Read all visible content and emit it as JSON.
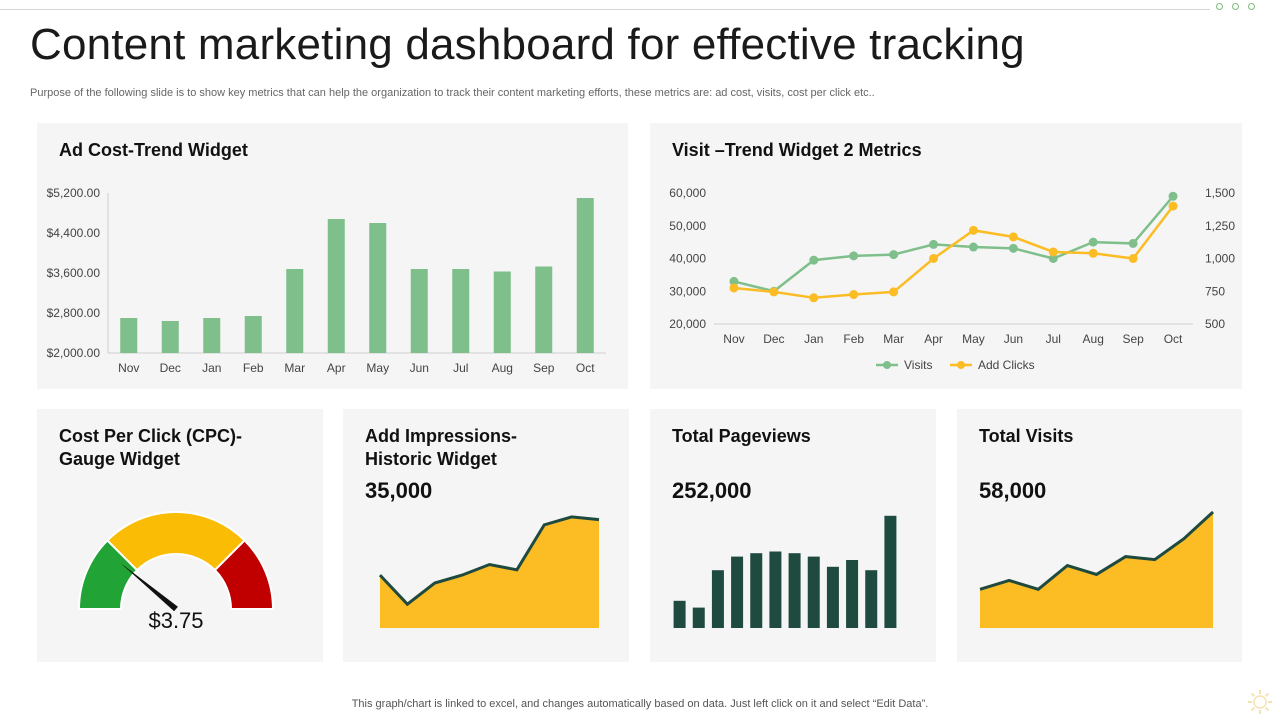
{
  "page": {
    "title": "Content marketing dashboard for effective tracking",
    "subtitle": "Purpose of the following slide is to show key metrics that can help the organization to track their content marketing efforts, these metrics are: ad cost, visits, cost per click etc..",
    "footer": "This graph/chart is linked to excel,  and changes automatically based on data. Just left click on it and select “Edit Data”."
  },
  "colors": {
    "green": "#7fbf8b",
    "yellow": "#fbbc24",
    "dark_green": "#1f4a3f",
    "gauge_green": "#22a336",
    "gauge_yellow": "#fbbc05",
    "gauge_red": "#c00000"
  },
  "cards": {
    "ad_cost": {
      "title": "Ad Cost-Trend Widget"
    },
    "visit_trend": {
      "title": "Visit –Trend Widget 2 Metrics"
    },
    "cpc": {
      "title_line1": "Cost Per Click (CPC)-",
      "title_line2": "Gauge Widget",
      "value": "$3.75"
    },
    "impressions": {
      "title_line1": "Add Impressions-",
      "title_line2": "Historic Widget",
      "value": "35,000"
    },
    "pageviews": {
      "title": "Total Pageviews",
      "value": "252,000"
    },
    "total_visits": {
      "title": "Total Visits",
      "value": "58,000"
    }
  },
  "chart_data": [
    {
      "id": "ad_cost",
      "type": "bar",
      "categories": [
        "Nov",
        "Dec",
        "Jan",
        "Feb",
        "Mar",
        "Apr",
        "May",
        "Jun",
        "Jul",
        "Aug",
        "Sep",
        "Oct"
      ],
      "values": [
        2700,
        2640,
        2700,
        2740,
        3680,
        4680,
        4600,
        3680,
        3680,
        3630,
        3730,
        5100
      ],
      "ylim": [
        2000,
        5200
      ],
      "yticks": [
        "$2,000.00",
        "$2,800.00",
        "$3,600.00",
        "$4,400.00",
        "$5,200.00"
      ],
      "ytick_values": [
        2000,
        2800,
        3600,
        4400,
        5200
      ]
    },
    {
      "id": "visit_trend",
      "type": "line",
      "categories": [
        "Nov",
        "Dec",
        "Jan",
        "Feb",
        "Mar",
        "Apr",
        "May",
        "Jun",
        "Jul",
        "Aug",
        "Sep",
        "Oct"
      ],
      "series": [
        {
          "name": "Visits",
          "axis": "left",
          "values": [
            33000,
            30000,
            39500,
            40800,
            41200,
            44300,
            43500,
            43100,
            40000,
            45000,
            44600,
            59000
          ]
        },
        {
          "name": "Add Clicks",
          "axis": "right",
          "values": [
            775,
            745,
            700,
            725,
            745,
            1000,
            1215,
            1165,
            1050,
            1040,
            1000,
            1400
          ]
        }
      ],
      "ylim_left": [
        20000,
        60000
      ],
      "yticks_left": [
        "20,000",
        "30,000",
        "40,000",
        "50,000",
        "60,000"
      ],
      "ytick_values_left": [
        20000,
        30000,
        40000,
        50000,
        60000
      ],
      "ylim_right": [
        500,
        1500
      ],
      "yticks_right": [
        "500",
        "750",
        "1,000",
        "1,250",
        "1,500"
      ],
      "ytick_values_right": [
        500,
        750,
        1000,
        1250,
        1500
      ],
      "legend": "bottom"
    },
    {
      "id": "cpc_gauge",
      "type": "gauge",
      "value": 3.75,
      "needle_fraction": 0.22,
      "segments": [
        {
          "color": "#22a336",
          "fraction": 0.25
        },
        {
          "color": "#fbbc05",
          "fraction": 0.5
        },
        {
          "color": "#c00000",
          "fraction": 0.25
        }
      ]
    },
    {
      "id": "impressions",
      "type": "area",
      "values": [
        20,
        9,
        17,
        20,
        24,
        22,
        39,
        42,
        41
      ],
      "ylim": [
        0,
        45
      ]
    },
    {
      "id": "pageviews",
      "type": "bar",
      "values": [
        8,
        6,
        17,
        21,
        22,
        22.5,
        22,
        21,
        18,
        20,
        17,
        33
      ],
      "ylim": [
        0,
        35
      ]
    },
    {
      "id": "total_visits",
      "type": "area",
      "values": [
        13,
        16,
        13,
        21,
        18,
        24,
        23,
        30,
        39
      ],
      "ylim": [
        0,
        40
      ]
    }
  ]
}
